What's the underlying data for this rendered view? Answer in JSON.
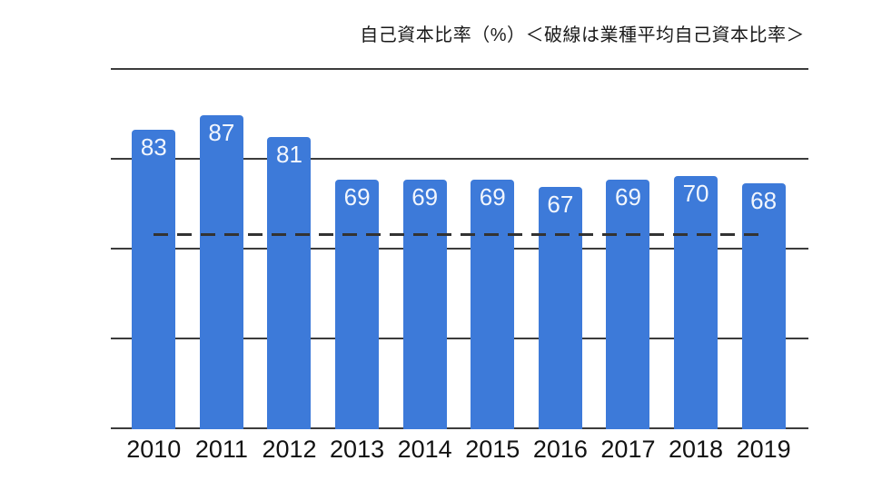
{
  "chart_data": {
    "type": "bar",
    "title": "自己資本比率（%）＜破線は業種平均自己資本比率＞",
    "categories": [
      "2010",
      "2011",
      "2012",
      "2013",
      "2014",
      "2015",
      "2016",
      "2017",
      "2018",
      "2019"
    ],
    "values": [
      83,
      87,
      81,
      69,
      69,
      69,
      67,
      69,
      70,
      68
    ],
    "xlabel": "",
    "ylabel": "",
    "ylim": [
      0,
      100
    ],
    "gridline_interval": 25,
    "grid": true,
    "y_axis_tick_labels_visible": false,
    "industry_average_dashed_line": 54,
    "bar_color": "#3d7ad9",
    "bar_value_label_color": "#f2f6fd",
    "gridline_color": "#3c3c3c",
    "dashed_line_color": "#333333",
    "background_color": "#ffffff",
    "legend_position": "none"
  }
}
